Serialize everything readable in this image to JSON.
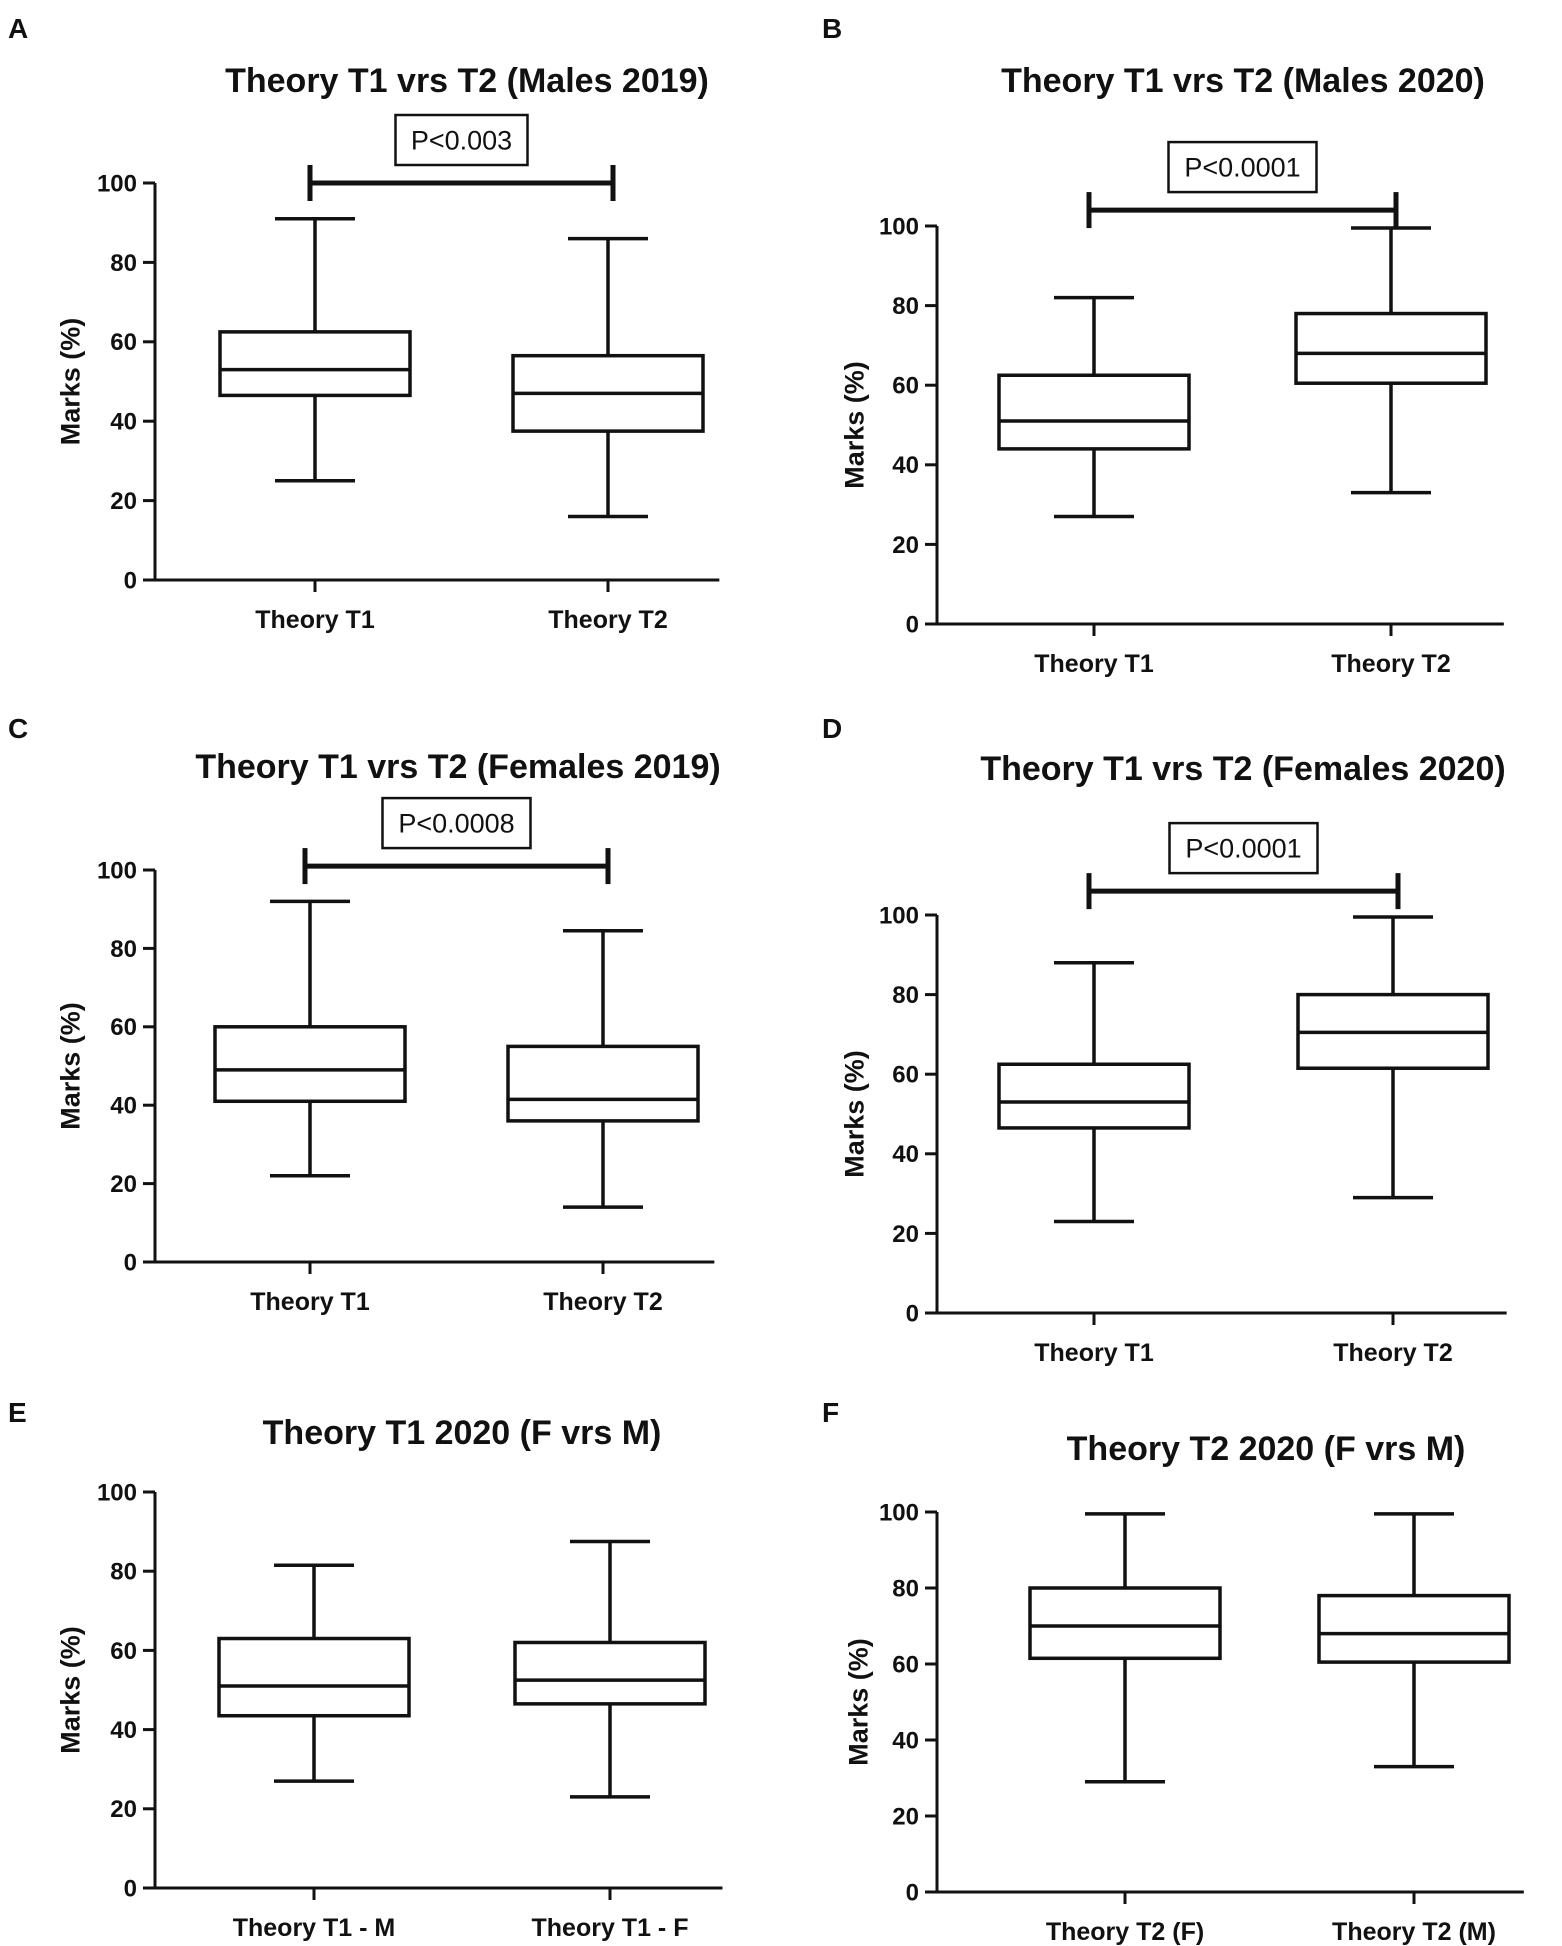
{
  "chart_data": [
    {
      "panel": "A",
      "type": "boxplot",
      "title": "Theory T1 vrs T2 (Males 2019)",
      "ylabel": "Marks (%)",
      "xlabel": "",
      "ylim": [
        0,
        100
      ],
      "yticks": [
        0,
        20,
        40,
        60,
        80,
        100
      ],
      "categories": [
        "Theory T1",
        "Theory T2"
      ],
      "boxes": [
        {
          "min": 25,
          "q1": 46.5,
          "median": 53,
          "q3": 62.5,
          "max": 91
        },
        {
          "min": 16,
          "q1": 37.5,
          "median": 47,
          "q3": 56.5,
          "max": 86
        }
      ],
      "significance": {
        "label": "P<0.003",
        "between": [
          0,
          1
        ],
        "y": 100
      }
    },
    {
      "panel": "B",
      "type": "boxplot",
      "title": "Theory T1 vrs T2 (Males 2020)",
      "ylabel": "Marks (%)",
      "xlabel": "",
      "ylim": [
        0,
        100
      ],
      "yticks": [
        0,
        20,
        40,
        60,
        80,
        100
      ],
      "categories": [
        "Theory T1",
        "Theory T2"
      ],
      "boxes": [
        {
          "min": 27,
          "q1": 44,
          "median": 51,
          "q3": 62.5,
          "max": 82
        },
        {
          "min": 33,
          "q1": 60.5,
          "median": 68,
          "q3": 78,
          "max": 99.5
        }
      ],
      "significance": {
        "label": "P<0.0001",
        "between": [
          0,
          1
        ],
        "y": 104
      }
    },
    {
      "panel": "C",
      "type": "boxplot",
      "title": "Theory T1 vrs T2 (Females 2019)",
      "ylabel": "Marks (%)",
      "xlabel": "",
      "ylim": [
        0,
        100
      ],
      "yticks": [
        0,
        20,
        40,
        60,
        80,
        100
      ],
      "categories": [
        "Theory T1",
        "Theory T2"
      ],
      "boxes": [
        {
          "min": 22,
          "q1": 41,
          "median": 49,
          "q3": 60,
          "max": 92
        },
        {
          "min": 14,
          "q1": 36,
          "median": 41.5,
          "q3": 55,
          "max": 84.5
        }
      ],
      "significance": {
        "label": "P<0.0008",
        "between": [
          0,
          1
        ],
        "y": 101
      }
    },
    {
      "panel": "D",
      "type": "boxplot",
      "title": "Theory T1 vrs T2 (Females 2020)",
      "ylabel": "Marks (%)",
      "xlabel": "",
      "ylim": [
        0,
        100
      ],
      "yticks": [
        0,
        20,
        40,
        60,
        80,
        100
      ],
      "categories": [
        "Theory T1",
        "Theory T2"
      ],
      "boxes": [
        {
          "min": 23,
          "q1": 46.5,
          "median": 53,
          "q3": 62.5,
          "max": 88
        },
        {
          "min": 29,
          "q1": 61.5,
          "median": 70.5,
          "q3": 80,
          "max": 99.5
        }
      ],
      "significance": {
        "label": "P<0.0001",
        "between": [
          0,
          1
        ],
        "y": 106
      }
    },
    {
      "panel": "E",
      "type": "boxplot",
      "title": "Theory T1 2020 (F vrs M)",
      "ylabel": "Marks (%)",
      "xlabel": "",
      "ylim": [
        0,
        100
      ],
      "yticks": [
        0,
        20,
        40,
        60,
        80,
        100
      ],
      "categories": [
        "Theory T1 - M",
        "Theory T1 - F"
      ],
      "boxes": [
        {
          "min": 27,
          "q1": 43.5,
          "median": 51,
          "q3": 63,
          "max": 81.5
        },
        {
          "min": 23,
          "q1": 46.5,
          "median": 52.5,
          "q3": 62,
          "max": 87.5
        }
      ],
      "significance": null
    },
    {
      "panel": "F",
      "type": "boxplot",
      "title": "Theory T2 2020 (F vrs M)",
      "ylabel": "Marks (%)",
      "xlabel": "",
      "ylim": [
        0,
        100
      ],
      "yticks": [
        0,
        20,
        40,
        60,
        80,
        100
      ],
      "categories": [
        "Theory T2 (F)",
        "Theory T2 (M)"
      ],
      "boxes": [
        {
          "min": 29,
          "q1": 61.5,
          "median": 70,
          "q3": 80,
          "max": 99.5
        },
        {
          "min": 33,
          "q1": 60.5,
          "median": 68,
          "q3": 78,
          "max": 99.5
        }
      ],
      "significance": null
    }
  ]
}
